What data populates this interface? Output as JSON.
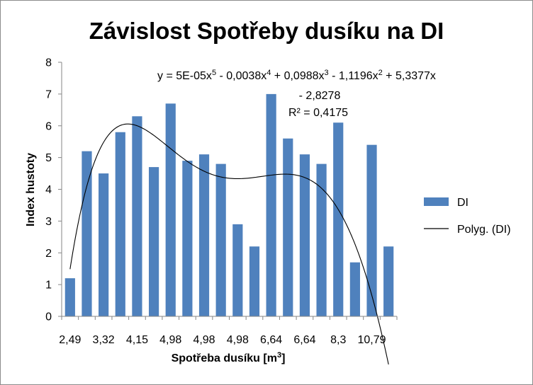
{
  "chart_data": {
    "type": "bar",
    "title": "Závislost Spotřeby dusíku na DI",
    "xlabel": "Spotřeba dusíku [m",
    "xlabel_sup": "3",
    "xlabel_end": "]",
    "ylabel": "Index hustoty",
    "ylim": [
      0,
      8
    ],
    "yticks": [
      "0",
      "1",
      "2",
      "3",
      "4",
      "5",
      "6",
      "7",
      "8"
    ],
    "x_tick_labels": [
      {
        "index": 0,
        "label": "2,49"
      },
      {
        "index": 2,
        "label": "3,32"
      },
      {
        "index": 4,
        "label": "4,15"
      },
      {
        "index": 6,
        "label": "4,98"
      },
      {
        "index": 8,
        "label": "4,98"
      },
      {
        "index": 10,
        "label": "4,98"
      },
      {
        "index": 12,
        "label": "6,64"
      },
      {
        "index": 14,
        "label": "6,64"
      },
      {
        "index": 16,
        "label": "8,3"
      },
      {
        "index": 18,
        "label": "10,79"
      }
    ],
    "grid": false,
    "legend_position": "right",
    "series": [
      {
        "name": "DI",
        "color": "#4f81bd",
        "values": [
          1.2,
          5.2,
          4.5,
          5.8,
          6.3,
          4.7,
          6.7,
          4.9,
          5.1,
          4.8,
          2.9,
          2.2,
          7.0,
          5.6,
          5.1,
          4.8,
          6.1,
          1.7,
          5.4,
          2.2
        ]
      }
    ],
    "trendline": {
      "name": "Polyg. (DI)",
      "type": "polynomial",
      "order": 5,
      "coefficients": [
        -2.8278,
        5.3377,
        -1.1196,
        0.0988,
        -0.0038,
        5e-05
      ],
      "color": "#000000",
      "equation": {
        "line1": [
          {
            "t": "y = 5E-05x"
          },
          {
            "s": "5"
          },
          {
            "t": " - 0,0038x"
          },
          {
            "s": "4"
          },
          {
            "t": " + 0,0988x"
          },
          {
            "s": "3"
          },
          {
            "t": " - 1,1196x"
          },
          {
            "s": "2"
          },
          {
            "t": " + 5,3377x"
          }
        ],
        "line2": "- 2,8278",
        "r2_label": "R² = 0,4175"
      }
    }
  }
}
